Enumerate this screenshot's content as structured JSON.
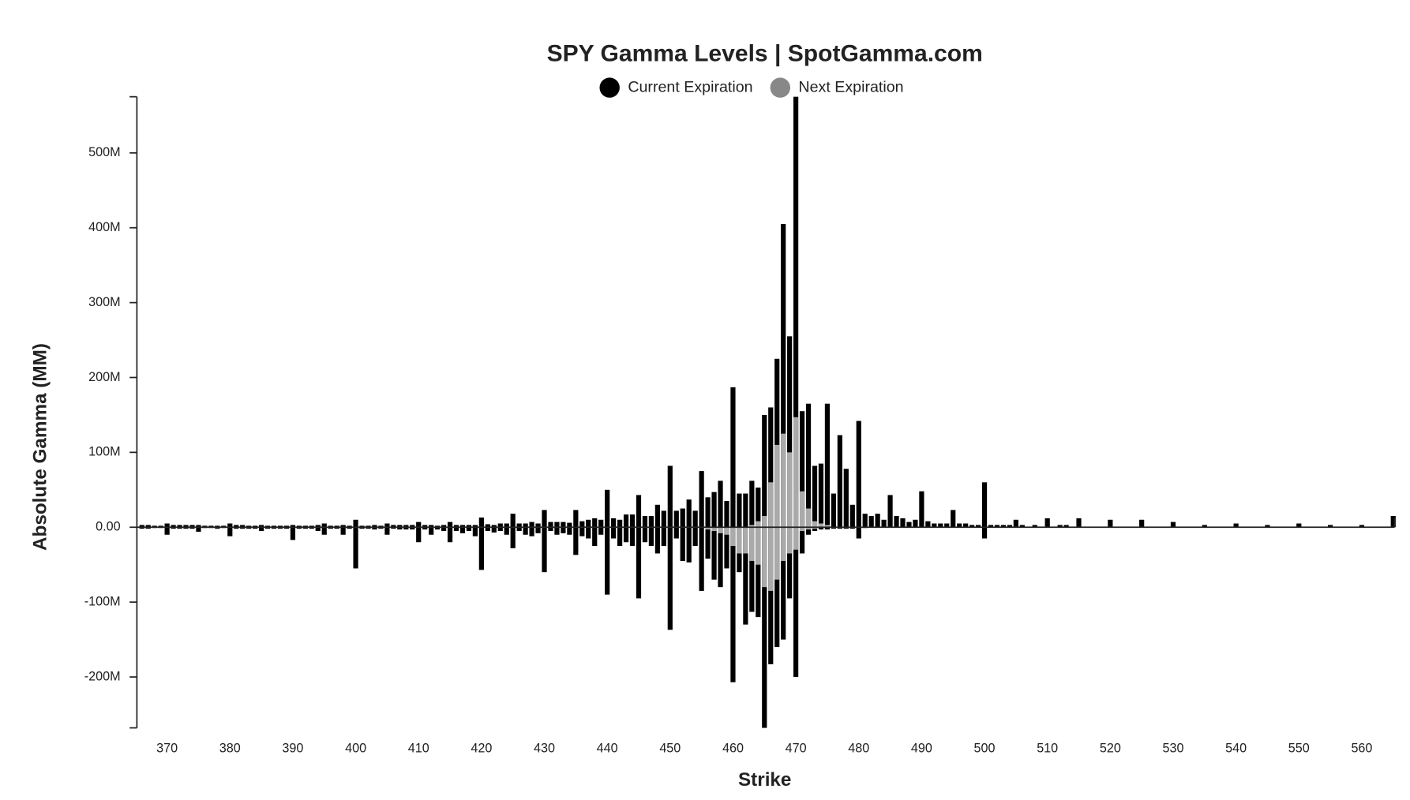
{
  "chart_data": {
    "type": "bar",
    "title": "SPY Gamma Levels | SpotGamma.com",
    "x_label": "Strike",
    "y_label": "Absolute Gamma (MM)",
    "xlim": [
      365.2,
      565.2
    ],
    "xticks": [
      370,
      380,
      390,
      400,
      410,
      420,
      430,
      440,
      450,
      460,
      470,
      480,
      490,
      500,
      510,
      520,
      530,
      540,
      550,
      560
    ],
    "ylim": [
      -268,
      575
    ],
    "yticks": [
      {
        "value": -200,
        "label": "-200M"
      },
      {
        "value": -100,
        "label": "-100M"
      },
      {
        "value": 0,
        "label": "0.00"
      },
      {
        "value": 100,
        "label": "100M"
      },
      {
        "value": 200,
        "label": "200M"
      },
      {
        "value": 300,
        "label": "300M"
      },
      {
        "value": 400,
        "label": "400M"
      },
      {
        "value": 500,
        "label": "500M"
      }
    ],
    "series": [
      {
        "name": "Current Expiration",
        "color": "#000000",
        "x": [
          366,
          367,
          368,
          369,
          370,
          371,
          372,
          373,
          374,
          375,
          376,
          377,
          378,
          379,
          380,
          381,
          382,
          383,
          384,
          385,
          386,
          387,
          388,
          389,
          390,
          391,
          392,
          393,
          394,
          395,
          396,
          397,
          398,
          399,
          400,
          401,
          402,
          403,
          404,
          405,
          406,
          407,
          408,
          409,
          410,
          411,
          412,
          413,
          414,
          415,
          416,
          417,
          418,
          419,
          420,
          421,
          422,
          423,
          424,
          425,
          426,
          427,
          428,
          429,
          430,
          431,
          432,
          433,
          434,
          435,
          436,
          437,
          438,
          439,
          440,
          441,
          442,
          443,
          444,
          445,
          446,
          447,
          448,
          449,
          450,
          451,
          452,
          453,
          454,
          455,
          456,
          457,
          458,
          459,
          460,
          461,
          462,
          463,
          464,
          465,
          466,
          467,
          468,
          469,
          470,
          471,
          472,
          473,
          474,
          475,
          476,
          477,
          478,
          479,
          480,
          481,
          482,
          483,
          484,
          485,
          486,
          487,
          488,
          489,
          490,
          491,
          492,
          493,
          494,
          495,
          496,
          497,
          498,
          499,
          500,
          501,
          502,
          503,
          504,
          505,
          506,
          508,
          510,
          512,
          513,
          515,
          520,
          525,
          530,
          535,
          540,
          545,
          550,
          555,
          560,
          565
        ],
        "values": [
          3,
          3,
          2,
          2,
          5,
          3,
          3,
          3,
          3,
          3,
          2,
          2,
          2,
          2,
          5,
          3,
          3,
          2,
          2,
          3,
          2,
          2,
          2,
          2,
          3,
          2,
          2,
          2,
          3,
          5,
          2,
          2,
          3,
          2,
          10,
          2,
          2,
          3,
          2,
          5,
          3,
          3,
          3,
          3,
          7,
          3,
          3,
          2,
          3,
          7,
          3,
          3,
          3,
          3,
          13,
          4,
          3,
          5,
          5,
          18,
          5,
          5,
          7,
          5,
          23,
          7,
          7,
          7,
          6,
          23,
          8,
          10,
          12,
          10,
          50,
          12,
          10,
          17,
          17,
          43,
          15,
          15,
          30,
          22,
          82,
          22,
          25,
          37,
          22,
          75,
          40,
          47,
          62,
          35,
          187,
          45,
          45,
          62,
          53,
          150,
          160,
          225,
          405,
          255,
          575,
          155,
          165,
          82,
          85,
          165,
          45,
          123,
          78,
          30,
          142,
          18,
          15,
          18,
          10,
          43,
          15,
          12,
          7,
          10,
          48,
          8,
          5,
          5,
          5,
          23,
          5,
          5,
          3,
          3,
          60,
          3,
          3,
          3,
          3,
          10,
          3,
          3,
          12,
          3,
          3,
          12,
          10,
          10,
          7,
          3,
          5,
          3,
          5,
          3,
          3,
          15
        ],
        "neg_values": [
          -2,
          -2,
          -1,
          -1,
          -10,
          -2,
          -2,
          -2,
          -2,
          -6,
          -1,
          -1,
          -2,
          -1,
          -12,
          -2,
          -2,
          -2,
          -2,
          -5,
          -2,
          -2,
          -2,
          -2,
          -17,
          -2,
          -2,
          -2,
          -5,
          -10,
          -2,
          -2,
          -10,
          -2,
          -55,
          -2,
          -2,
          -3,
          -2,
          -10,
          -2,
          -3,
          -3,
          -3,
          -20,
          -3,
          -10,
          -3,
          -5,
          -20,
          -5,
          -8,
          -5,
          -12,
          -57,
          -5,
          -7,
          -5,
          -10,
          -28,
          -5,
          -10,
          -12,
          -8,
          -60,
          -5,
          -10,
          -8,
          -10,
          -37,
          -12,
          -15,
          -25,
          -10,
          -90,
          -15,
          -25,
          -20,
          -25,
          -95,
          -20,
          -25,
          -35,
          -25,
          -137,
          -15,
          -45,
          -47,
          -25,
          -85,
          -42,
          -70,
          -80,
          -55,
          -207,
          -60,
          -130,
          -113,
          -120,
          -268,
          -183,
          -160,
          -150,
          -95,
          -200,
          -35,
          -10,
          -5,
          -3,
          -3,
          -2,
          -2,
          -2,
          -2,
          -15,
          -1,
          0,
          0,
          0,
          0,
          0,
          0,
          0,
          0,
          0,
          0,
          0,
          0,
          0,
          0,
          0,
          0,
          0,
          0,
          -15,
          0,
          0,
          0,
          0,
          0,
          0,
          0,
          0,
          0,
          0,
          0,
          0,
          0,
          0,
          0,
          0,
          0,
          0,
          0,
          0,
          0
        ]
      },
      {
        "name": "Next Expiration",
        "color": "#aaaaaa",
        "x": [
          456,
          457,
          458,
          459,
          460,
          461,
          462,
          463,
          464,
          465,
          466,
          467,
          468,
          469,
          470,
          471,
          472,
          473,
          474,
          475
        ],
        "values": [
          0,
          0,
          0,
          0,
          0,
          0,
          0,
          3,
          8,
          15,
          60,
          110,
          125,
          100,
          147,
          48,
          25,
          8,
          5,
          3
        ],
        "neg_values": [
          -3,
          -5,
          -8,
          -10,
          -25,
          -35,
          -35,
          -45,
          -50,
          -80,
          -85,
          -70,
          -45,
          -35,
          -30,
          -5,
          -3,
          -2,
          0,
          0
        ]
      }
    ]
  }
}
